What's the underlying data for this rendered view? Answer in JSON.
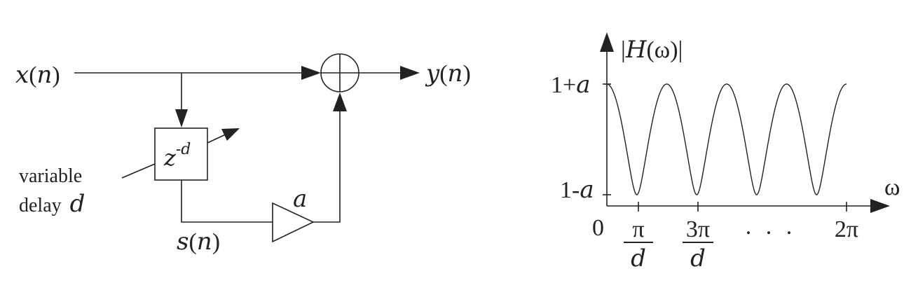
{
  "block_diagram": {
    "input": {
      "sym": "x",
      "open": "(",
      "arg": "n",
      "close": ")"
    },
    "output": {
      "sym": "y",
      "open": "(",
      "arg": "n",
      "close": ")"
    },
    "delay": {
      "base": "z",
      "exp": "-d"
    },
    "variable_delay": {
      "line1": "variable",
      "line2": "delay",
      "symbol": "d"
    },
    "gain": "a",
    "internal": {
      "sym": "s",
      "open": "(",
      "arg": "n",
      "close": ")"
    }
  },
  "response_plot": {
    "ylabel": {
      "pre": "|",
      "sym": "H",
      "open": "(",
      "arg": "ω",
      "close": ")",
      "post": "|"
    },
    "xlabel": "ω",
    "y_ticks": [
      {
        "num": "1",
        "op": "+",
        "var": "a"
      },
      {
        "num": "1",
        "op": "-",
        "var": "a"
      }
    ],
    "x_ticks": {
      "origin": "0",
      "t1": {
        "num": "π",
        "den": "d"
      },
      "t2": {
        "num": "3π",
        "den": "d"
      },
      "dots": ". . .",
      "t4": "2π"
    }
  },
  "chart_data": {
    "type": "line",
    "title": "",
    "ylabel": "|H(ω)|",
    "xlabel": "ω",
    "x_tick_labels": [
      "0",
      "π/d",
      "3π/d",
      ". . .",
      "2π"
    ],
    "y_tick_labels": [
      "1-a",
      "1+a"
    ],
    "periods": 4,
    "series": [
      {
        "x_unit": "π/d",
        "x": [
          0,
          1,
          2,
          3,
          4,
          5,
          6,
          7,
          8
        ],
        "y": [
          "1+a",
          "1-a",
          "1+a",
          "1-a",
          "1+a",
          "1-a",
          "1+a",
          "1-a",
          "1+a"
        ]
      }
    ]
  }
}
